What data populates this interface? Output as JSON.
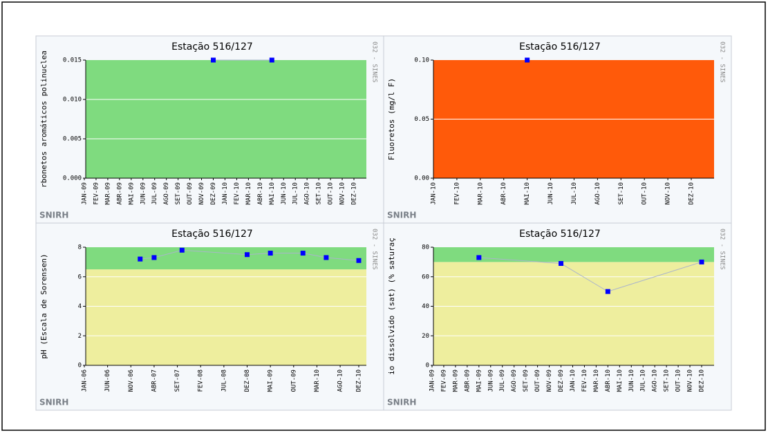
{
  "chart_data": [
    {
      "type": "line",
      "title": "Estação 516/127",
      "y_label": "rbonetos aromáticos polinuclea",
      "side_label": "032 - SINES",
      "watermark": "SNIRH",
      "categories": [
        "JAN-09",
        "FEV-09",
        "MAR-09",
        "ABR-09",
        "MAI-09",
        "JUN-09",
        "JUL-09",
        "AGO-09",
        "SET-09",
        "OUT-09",
        "NOV-09",
        "DEZ-09",
        "JAN-10",
        "FEV-10",
        "MAR-10",
        "ABR-10",
        "MAI-10",
        "JUN-10",
        "JUL-10",
        "AGO-10",
        "SET-10",
        "OUT-10",
        "NOV-10",
        "DEZ-10"
      ],
      "values": [
        null,
        null,
        null,
        null,
        null,
        null,
        null,
        null,
        null,
        null,
        null,
        0.015,
        null,
        null,
        null,
        null,
        0.015,
        null,
        null,
        null,
        null,
        null,
        null,
        null
      ],
      "color": "#0000ff",
      "line_color": "#aab4cc",
      "bands": [
        {
          "from": 0,
          "to": 0.015,
          "color": "#7fdb7f"
        }
      ],
      "ylim": [
        0,
        0.015
      ],
      "yticks": [
        {
          "value": 0,
          "label": "0.000"
        },
        {
          "value": 0.005,
          "label": "0.005"
        },
        {
          "value": 0.01,
          "label": "0.010"
        },
        {
          "value": 0.015,
          "label": "0.015"
        }
      ],
      "grid": true
    },
    {
      "type": "line",
      "title": "Estação 516/127",
      "y_label": "Fluoretos (mg/l F)",
      "side_label": "032 - SINES",
      "watermark": "SNIRH",
      "categories": [
        "JAN-10",
        "FEV-10",
        "MAR-10",
        "ABR-10",
        "MAI-10",
        "JUN-10",
        "JUL-10",
        "AGO-10",
        "SET-10",
        "OUT-10",
        "NOV-10",
        "DEZ-10"
      ],
      "values": [
        null,
        null,
        null,
        null,
        0.1,
        null,
        null,
        null,
        null,
        null,
        null,
        null
      ],
      "color": "#0000ff",
      "line_color": "#aab4cc",
      "bands": [
        {
          "from": 0,
          "to": 0.1,
          "color": "#ff5a0a"
        }
      ],
      "ylim": [
        0,
        0.1
      ],
      "yticks": [
        {
          "value": 0,
          "label": "0.00"
        },
        {
          "value": 0.05,
          "label": "0.05"
        },
        {
          "value": 0.1,
          "label": "0.10"
        }
      ],
      "grid": true
    },
    {
      "type": "line",
      "title": "Estação 516/127",
      "y_label": "pH (Escala de Sorensen)",
      "side_label": "032 - SINES",
      "watermark": "SNIRH",
      "categories": [
        "JAN-06",
        null,
        null,
        null,
        null,
        "JUN-06",
        null,
        null,
        null,
        null,
        "NOV-06",
        null,
        null,
        null,
        null,
        "ABR-07",
        null,
        null,
        null,
        null,
        "SET-07",
        null,
        null,
        null,
        null,
        "FEV-08",
        null,
        null,
        null,
        null,
        "JUL-08",
        null,
        null,
        null,
        null,
        "DEZ-08",
        null,
        null,
        null,
        null,
        "MAI-09",
        null,
        null,
        null,
        null,
        "OUT-09",
        null,
        null,
        null,
        null,
        "MAR-10",
        null,
        null,
        null,
        null,
        "AGO-10",
        null,
        null,
        null,
        "DEZ-10"
      ],
      "values": [
        null,
        null,
        null,
        null,
        null,
        null,
        null,
        null,
        null,
        null,
        null,
        null,
        7.2,
        null,
        null,
        7.3,
        null,
        null,
        null,
        null,
        null,
        7.8,
        null,
        null,
        null,
        null,
        null,
        null,
        null,
        null,
        null,
        null,
        null,
        null,
        null,
        7.5,
        null,
        null,
        null,
        null,
        7.6,
        null,
        null,
        null,
        null,
        null,
        null,
        7.6,
        null,
        null,
        null,
        null,
        7.3,
        null,
        null,
        null,
        null,
        null,
        null,
        7.1
      ],
      "color": "#0000ff",
      "line_color": "#aab4cc",
      "bands": [
        {
          "from": 0,
          "to": 6.5,
          "color": "#eeee9e"
        },
        {
          "from": 6.5,
          "to": 8,
          "color": "#7fdb7f"
        }
      ],
      "ylim": [
        0,
        8
      ],
      "yticks": [
        0,
        2,
        4,
        6,
        8
      ],
      "grid": true
    },
    {
      "type": "line",
      "title": "Estação 516/127",
      "y_label": "io dissolvido (sat) (% saturaç",
      "side_label": "032 - SINES",
      "watermark": "SNIRH",
      "categories": [
        "JAN-09",
        "FEV-09",
        "MAR-09",
        "ABR-09",
        "MAI-09",
        "JUN-09",
        "JUL-09",
        "AGO-09",
        "SET-09",
        "OUT-09",
        "NOV-09",
        "DEZ-09",
        "JAN-10",
        "FEV-10",
        "MAR-10",
        "ABR-10",
        "MAI-10",
        "JUN-10",
        "JUL-10",
        "AGO-10",
        "SET-10",
        "OUT-10",
        "NOV-10",
        "DEZ-10"
      ],
      "values": [
        null,
        null,
        null,
        null,
        73,
        null,
        null,
        null,
        null,
        null,
        null,
        69,
        null,
        null,
        null,
        50,
        null,
        null,
        null,
        null,
        null,
        null,
        null,
        70
      ],
      "color": "#0000ff",
      "line_color": "#aab4cc",
      "bands": [
        {
          "from": 0,
          "to": 70,
          "color": "#eeee9e"
        },
        {
          "from": 70,
          "to": 80,
          "color": "#7fdb7f"
        }
      ],
      "ylim": [
        0,
        80
      ],
      "yticks": [
        0,
        20,
        40,
        60,
        80
      ],
      "grid": true
    }
  ]
}
